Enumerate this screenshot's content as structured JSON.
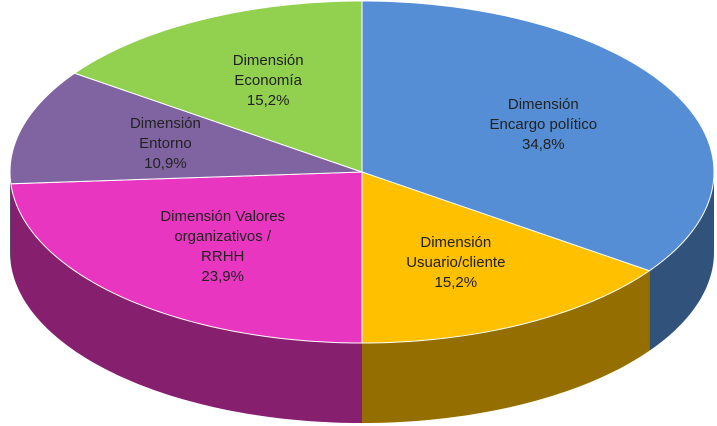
{
  "chart_data": {
    "type": "pie3d",
    "categories": [
      "Dimensión Encargo político",
      "Dimensión Usuario/cliente",
      "Dimensión Valores organizativos / RRHH",
      "Dimensión Entorno",
      "Dimensión Economía"
    ],
    "values": [
      34.8,
      15.2,
      23.9,
      10.9,
      15.2
    ],
    "value_labels": [
      "34,8%",
      "15,2%",
      "23,9%",
      "10,9%",
      "15,2%"
    ],
    "colors": [
      "#558ed5",
      "#ffc000",
      "#e936c0",
      "#8064a2",
      "#92d050"
    ]
  }
}
